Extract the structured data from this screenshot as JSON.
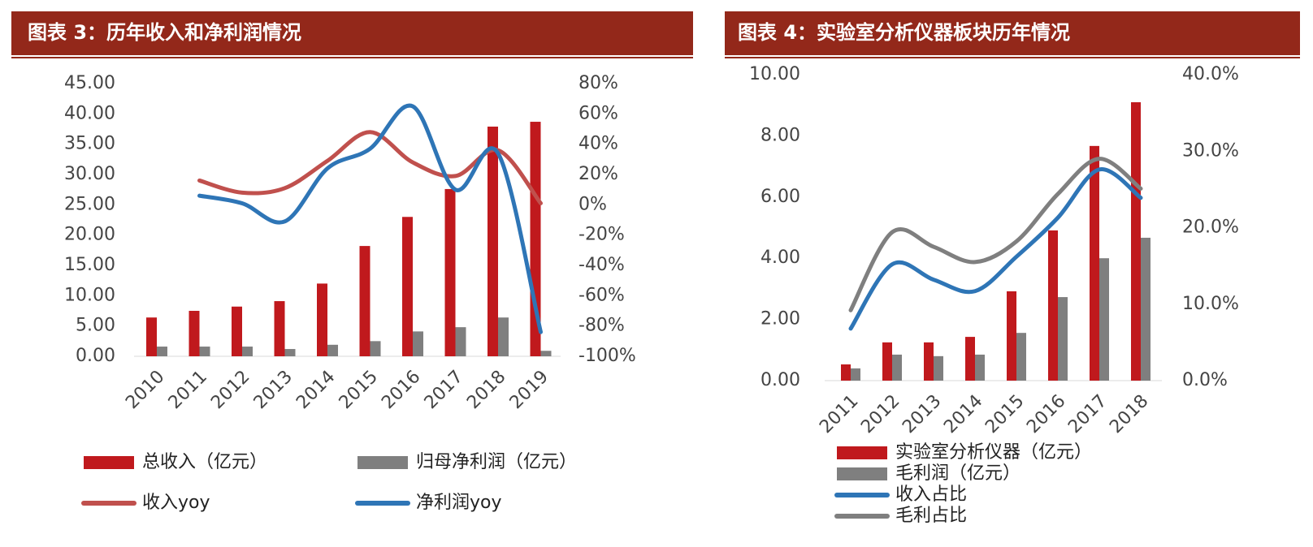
{
  "chart_data": [
    {
      "type": "bar",
      "title": "图表 3：历年收入和净利润情况",
      "categories": [
        "2010",
        "2011",
        "2012",
        "2013",
        "2014",
        "2015",
        "2016",
        "2017",
        "2018",
        "2019"
      ],
      "series": [
        {
          "name": "总收入（亿元）",
          "type": "bar",
          "color": "#c0191d",
          "values": [
            6.4,
            7.5,
            8.2,
            9.1,
            12.0,
            18.2,
            23.0,
            27.6,
            37.9,
            38.7
          ]
        },
        {
          "name": "归母净利润（亿元）",
          "type": "bar",
          "color": "#7f7f7f",
          "values": [
            1.6,
            1.6,
            1.6,
            1.2,
            1.9,
            2.5,
            4.1,
            4.8,
            6.4,
            0.9
          ]
        },
        {
          "name": "收入yoy",
          "type": "line",
          "axis": "y2",
          "color": "#c0504d",
          "values": [
            null,
            16,
            8,
            11,
            29,
            48,
            28,
            19,
            36,
            1
          ]
        },
        {
          "name": "净利润yoy",
          "type": "line",
          "axis": "y2",
          "color": "#2e75b6",
          "values": [
            null,
            6,
            1,
            -11,
            24,
            37,
            65,
            10,
            34,
            -84
          ]
        }
      ],
      "ylim": [
        0,
        45
      ],
      "yticks": [
        {
          "value": 0,
          "label": "0.00"
        },
        {
          "value": 5,
          "label": "5.00"
        },
        {
          "value": 10,
          "label": "10.00"
        },
        {
          "value": 15,
          "label": "15.00"
        },
        {
          "value": 20,
          "label": "20.00"
        },
        {
          "value": 25,
          "label": "25.00"
        },
        {
          "value": 30,
          "label": "30.00"
        },
        {
          "value": 35,
          "label": "35.00"
        },
        {
          "value": 40,
          "label": "40.00"
        },
        {
          "value": 45,
          "label": "45.00"
        }
      ],
      "y2lim": [
        -100,
        80
      ],
      "y2ticks": [
        {
          "value": -100,
          "label": "-100%"
        },
        {
          "value": -80,
          "label": "-80%"
        },
        {
          "value": -60,
          "label": "-60%"
        },
        {
          "value": -40,
          "label": "-40%"
        },
        {
          "value": -20,
          "label": "-20%"
        },
        {
          "value": 0,
          "label": "0%"
        },
        {
          "value": 20,
          "label": "20%"
        },
        {
          "value": 40,
          "label": "40%"
        },
        {
          "value": 60,
          "label": "60%"
        },
        {
          "value": 80,
          "label": "80%"
        }
      ]
    },
    {
      "type": "bar",
      "title": "图表 4：实验室分析仪器板块历年情况",
      "categories": [
        "2011",
        "2012",
        "2013",
        "2014",
        "2015",
        "2016",
        "2017",
        "2018"
      ],
      "series": [
        {
          "name": "实验室分析仪器（亿元）",
          "type": "bar",
          "color": "#c0191d",
          "values": [
            0.53,
            1.25,
            1.25,
            1.43,
            2.92,
            4.91,
            7.67,
            9.1
          ]
        },
        {
          "name": "毛利润（亿元）",
          "type": "bar",
          "color": "#7f7f7f",
          "values": [
            0.4,
            0.85,
            0.8,
            0.85,
            1.56,
            2.73,
            4.0,
            4.67
          ]
        },
        {
          "name": "收入占比",
          "type": "line",
          "axis": "y2",
          "color": "#2e75b6",
          "values": [
            6.8,
            15.2,
            13.2,
            11.7,
            16.2,
            21.3,
            27.6,
            23.9
          ]
        },
        {
          "name": "毛利占比",
          "type": "line",
          "axis": "y2",
          "color": "#7f7f7f",
          "values": [
            9.2,
            19.4,
            17.5,
            15.5,
            18.2,
            24.4,
            29.0,
            25.1
          ]
        }
      ],
      "ylim": [
        0,
        10
      ],
      "yticks": [
        {
          "value": 0,
          "label": "0.00"
        },
        {
          "value": 2,
          "label": "2.00"
        },
        {
          "value": 4,
          "label": "4.00"
        },
        {
          "value": 6,
          "label": "6.00"
        },
        {
          "value": 8,
          "label": "8.00"
        },
        {
          "value": 10,
          "label": "10.00"
        }
      ],
      "y2lim": [
        0,
        40
      ],
      "y2ticks": [
        {
          "value": 0,
          "label": "0.0%"
        },
        {
          "value": 10,
          "label": "10.0%"
        },
        {
          "value": 20,
          "label": "20.0%"
        },
        {
          "value": 30,
          "label": "30.0%"
        },
        {
          "value": 40,
          "label": "40.0%"
        }
      ]
    }
  ]
}
